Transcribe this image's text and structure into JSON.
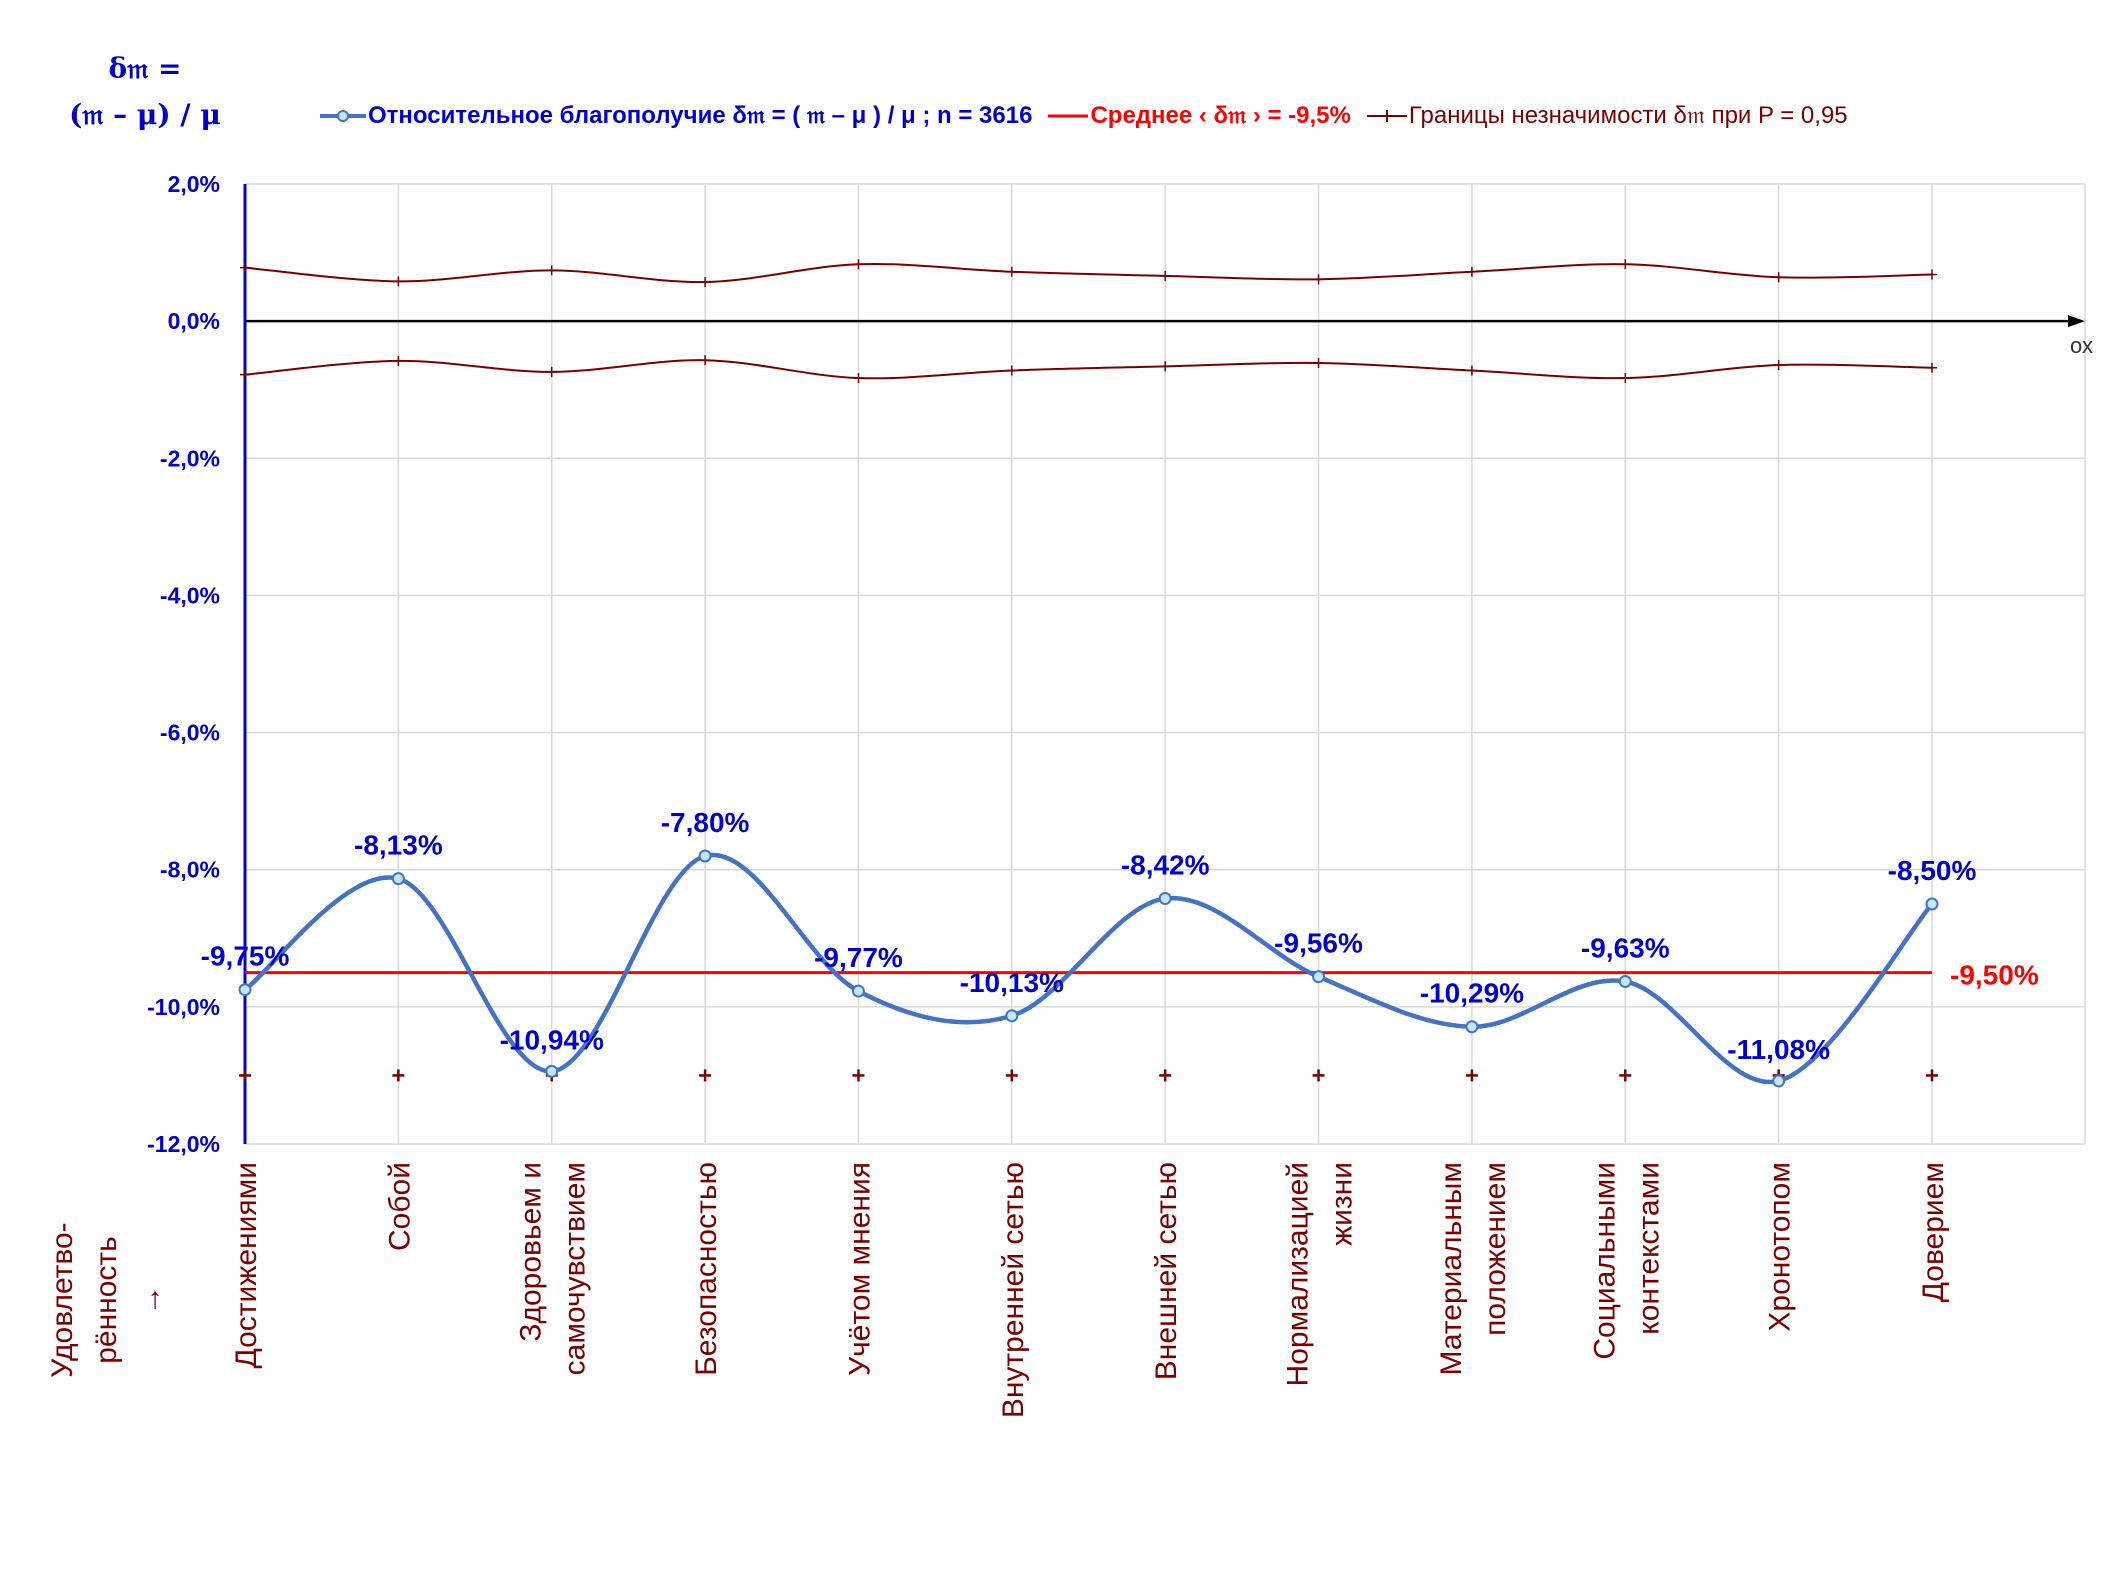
{
  "y_axis_title": [
    "δ𝔪 =",
    "(𝔪 – μ) / μ"
  ],
  "legend": [
    {
      "label": "Относительное благополучие δ𝔪 = ( 𝔪 – μ ) / μ ; n = 3616",
      "color": "#4472c4"
    },
    {
      "label": "Среднее ‹ δ𝔪 › = -9,5%",
      "color": "#ff0000"
    },
    {
      "label": "Границы незначимости δ𝔪 при P = 0,95",
      "color": "#7a0000"
    }
  ],
  "chart_data": {
    "type": "line",
    "categories": [
      [
        "Достижениями"
      ],
      [
        "Собой"
      ],
      [
        "Здоровьем и",
        "самочувствием"
      ],
      [
        "Безопасностью"
      ],
      [
        "Учётом мнения"
      ],
      [
        "Внутренней сетью"
      ],
      [
        "Внешней сетью"
      ],
      [
        "Нормализацией",
        "жизни"
      ],
      [
        "Материальным",
        "положением"
      ],
      [
        "Социальными",
        "контекстами"
      ],
      [
        "Хронотопом"
      ],
      [
        "Доверием"
      ]
    ],
    "x_axis_title": [
      "Удовлетво-",
      "рённость",
      "→"
    ],
    "x_axis_marker": "ох",
    "ylim": [
      -12,
      2
    ],
    "yticks": [
      2,
      0,
      -2,
      -4,
      -6,
      -8,
      -10,
      -12
    ],
    "ytick_labels": [
      "2,0%",
      "0,0%",
      "-2,0%",
      "-4,0%",
      "-6,0%",
      "-8,0%",
      "-10,0%",
      "-12,0%"
    ],
    "grid": true,
    "legend_position": "top",
    "series": [
      {
        "name": "Относительное благополучие δ𝔪 = ( 𝔪 – μ ) / μ ; n = 3616",
        "values": [
          -9.75,
          -8.13,
          -10.94,
          -7.8,
          -9.77,
          -10.13,
          -8.42,
          -9.56,
          -10.29,
          -9.63,
          -11.08,
          -8.5
        ],
        "value_labels": [
          "-9,75%",
          "-8,13%",
          "-10,94%",
          "-7,80%",
          "-9,77%",
          "-10,13%",
          "-8,42%",
          "-9,56%",
          "-10,29%",
          "-9,63%",
          "-11,08%",
          "-8,50%"
        ],
        "color": "#4472c4"
      },
      {
        "name": "Среднее ‹ δ𝔪 › = -9,5%",
        "values": [
          -9.5,
          -9.5,
          -9.5,
          -9.5,
          -9.5,
          -9.5,
          -9.5,
          -9.5,
          -9.5,
          -9.5,
          -9.5,
          -9.5
        ],
        "end_label": "-9,50%",
        "color": "#ff0000"
      },
      {
        "name": "Границы незначимости δ𝔪 при P = 0,95",
        "upper": [
          0.78,
          0.58,
          0.74,
          0.57,
          0.83,
          0.72,
          0.66,
          0.61,
          0.72,
          0.83,
          0.64,
          0.68
        ],
        "lower": [
          -0.78,
          -0.58,
          -0.74,
          -0.57,
          -0.83,
          -0.72,
          -0.66,
          -0.61,
          -0.72,
          -0.83,
          -0.64,
          -0.68
        ],
        "baseline_markers": -11.0,
        "color": "#7a0000"
      }
    ]
  }
}
